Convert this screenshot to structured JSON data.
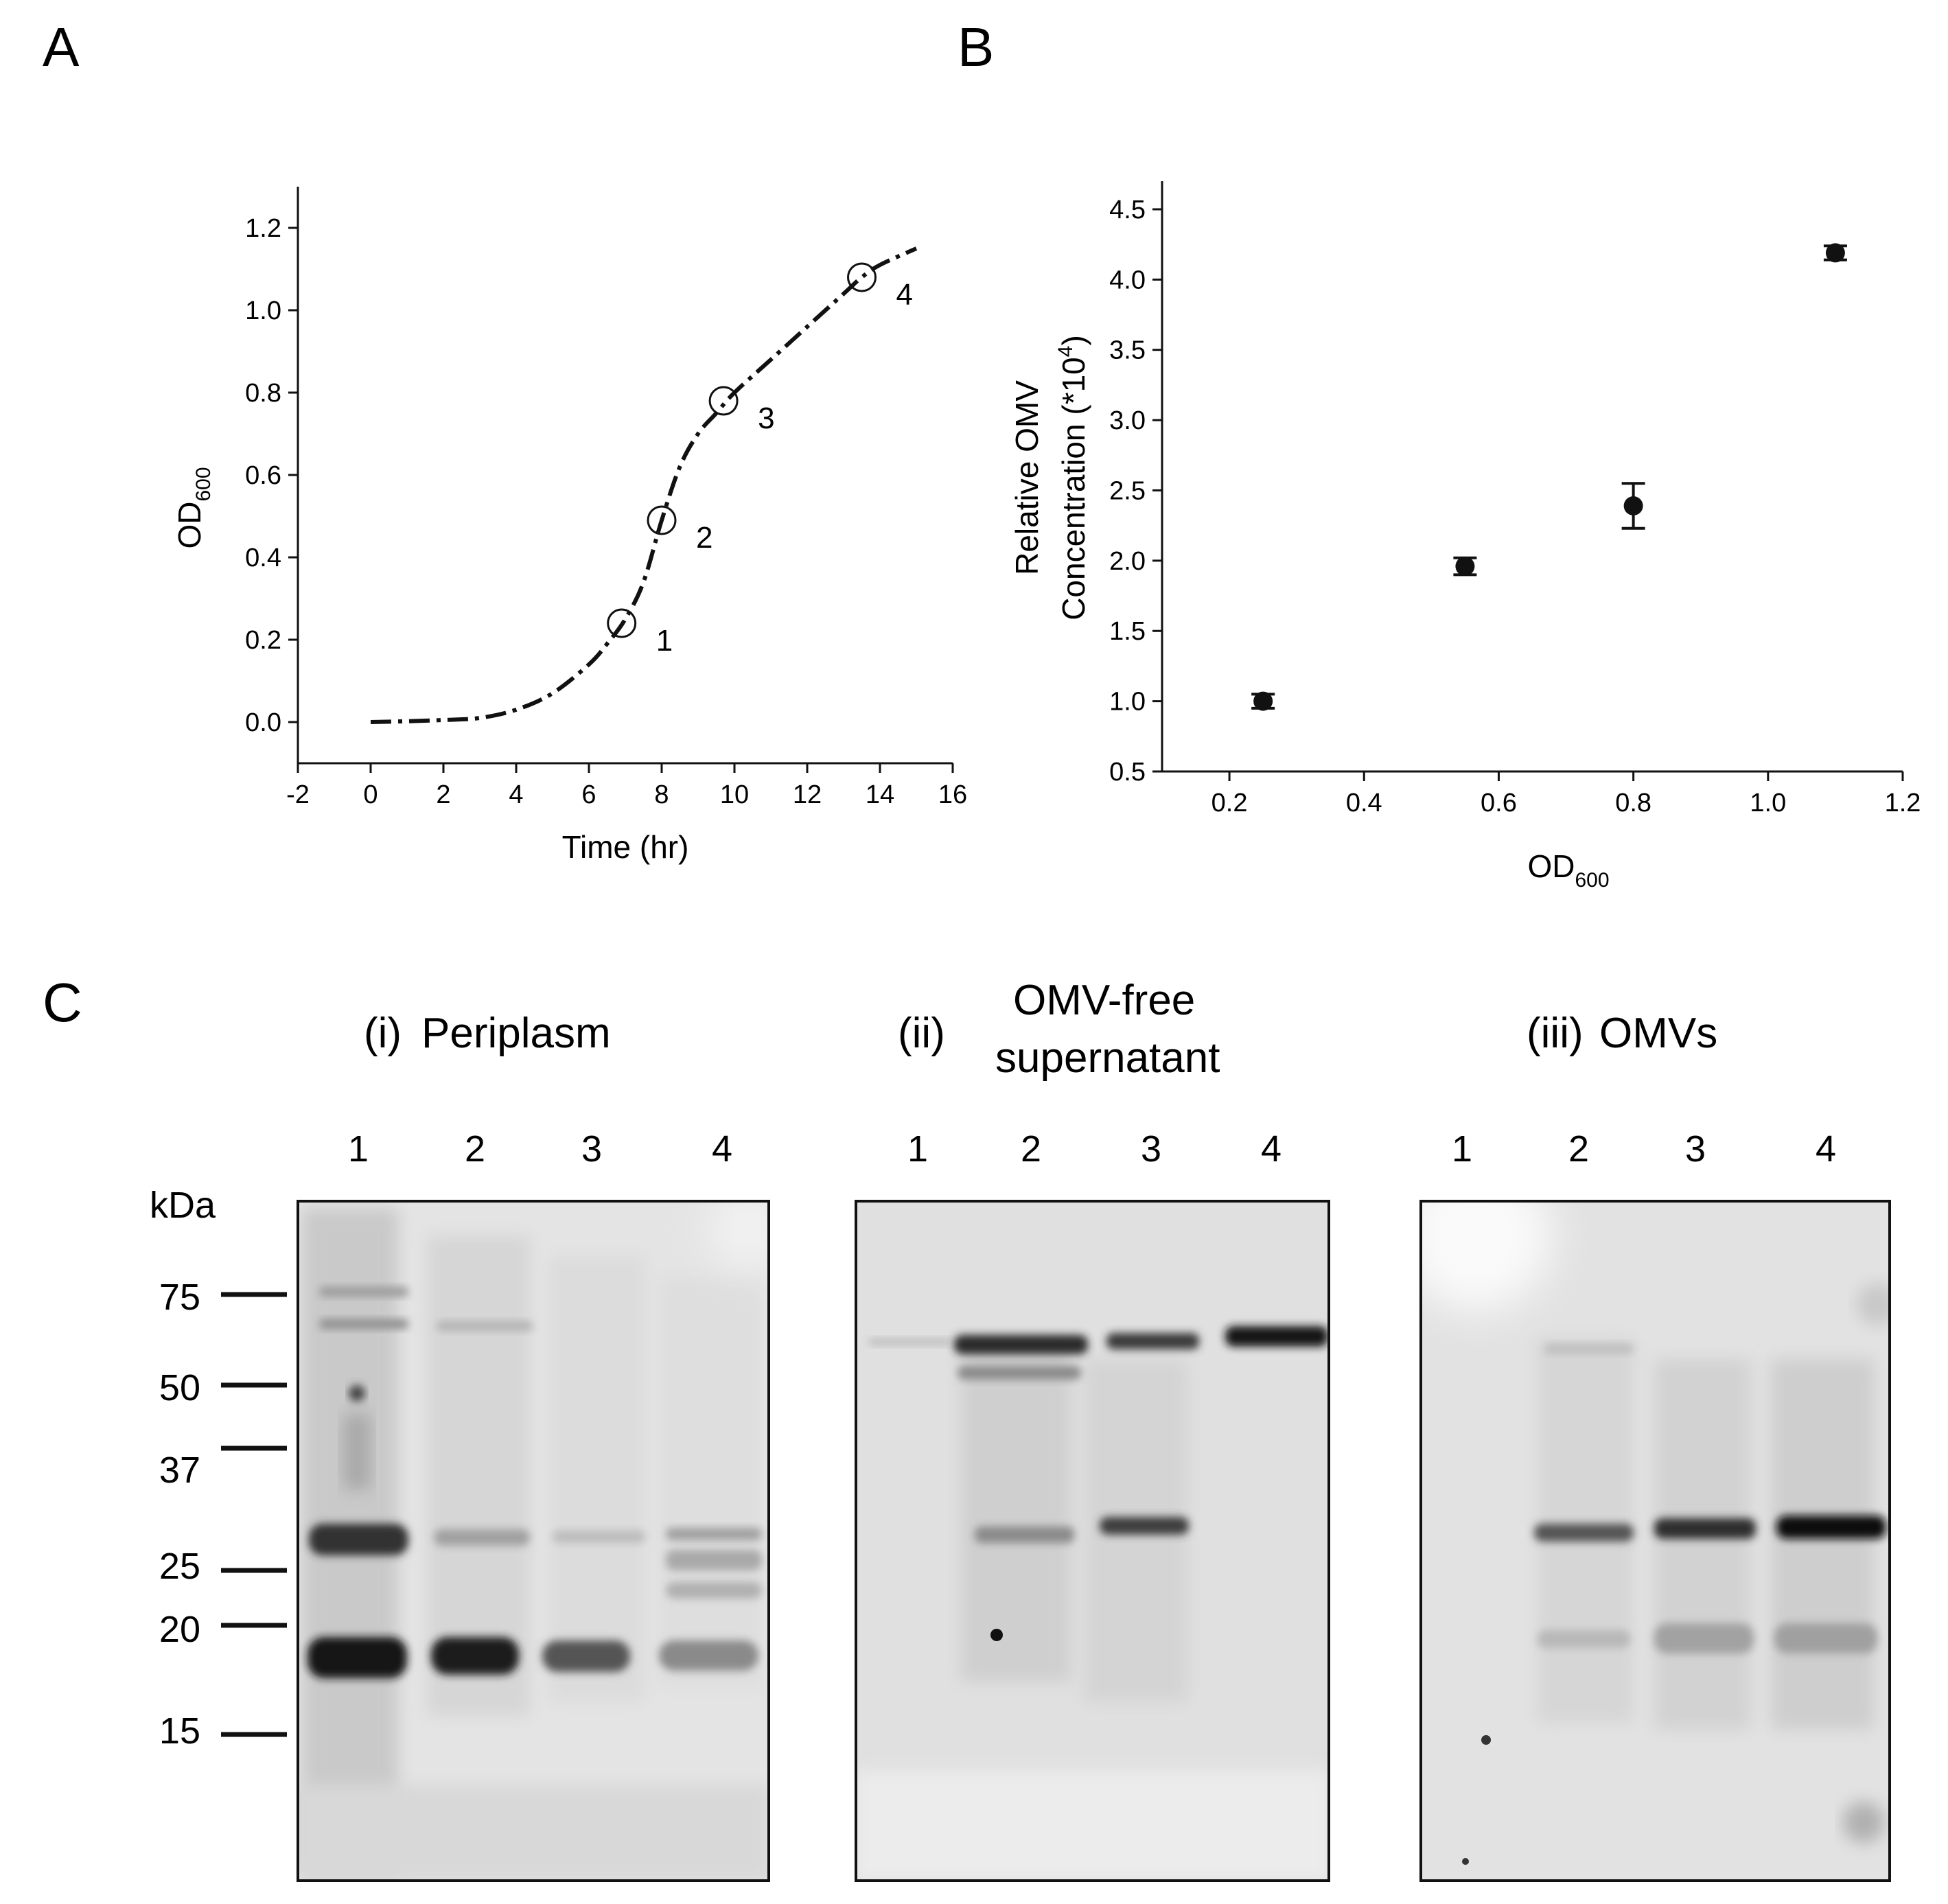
{
  "panels": {
    "A": "A",
    "B": "B",
    "C": "C"
  },
  "chart_data": [
    {
      "type": "line",
      "panel": "A",
      "xlabel": "Time (hr)",
      "ylabel_main": "OD",
      "ylabel_sub": "600",
      "xlim": [
        -2,
        16
      ],
      "ylim": [
        -0.1,
        1.3
      ],
      "xticks": [
        -2,
        0,
        2,
        4,
        6,
        8,
        10,
        12,
        14,
        16
      ],
      "yticks": [
        0.0,
        0.2,
        0.4,
        0.6,
        0.8,
        1.0,
        1.2
      ],
      "xtick_labels": [
        "-2",
        "0",
        "2",
        "4",
        "6",
        "8",
        "10",
        "12",
        "14",
        "16"
      ],
      "ytick_labels": [
        "0.0",
        "0.2",
        "0.4",
        "0.6",
        "0.8",
        "1.0",
        "1.2"
      ],
      "line_style": "dash-dot",
      "curve": {
        "x": [
          0,
          1,
          2,
          3,
          4,
          5,
          6,
          6.5,
          7,
          7.5,
          8,
          8.5,
          9,
          9.5,
          10,
          11,
          12,
          13,
          13.5,
          14,
          15
        ],
        "y": [
          0.0,
          0.002,
          0.005,
          0.01,
          0.03,
          0.07,
          0.14,
          0.19,
          0.25,
          0.34,
          0.49,
          0.62,
          0.7,
          0.75,
          0.8,
          0.88,
          0.96,
          1.04,
          1.08,
          1.11,
          1.15
        ]
      },
      "marked_points": [
        {
          "label": "1",
          "x": 6.9,
          "y": 0.24
        },
        {
          "label": "2",
          "x": 8.0,
          "y": 0.49
        },
        {
          "label": "3",
          "x": 9.7,
          "y": 0.78
        },
        {
          "label": "4",
          "x": 13.5,
          "y": 1.08
        }
      ]
    },
    {
      "type": "scatter",
      "panel": "B",
      "xlabel_main": "OD",
      "xlabel_sub": "600",
      "ylabel_line1": "Relative OMV",
      "ylabel_line2_main": "Concentration (*10",
      "ylabel_line2_sup": "4",
      "ylabel_line2_end": ")",
      "xlim": [
        0.1,
        1.2
      ],
      "ylim": [
        0.5,
        4.7
      ],
      "xticks": [
        0.2,
        0.4,
        0.6,
        0.8,
        1.0,
        1.2
      ],
      "yticks": [
        0.5,
        1.0,
        1.5,
        2.0,
        2.5,
        3.0,
        3.5,
        4.0,
        4.5
      ],
      "xtick_labels": [
        "0.2",
        "0.4",
        "0.6",
        "0.8",
        "1.0",
        "1.2"
      ],
      "ytick_labels": [
        "0.5",
        "1.0",
        "1.5",
        "2.0",
        "2.5",
        "3.0",
        "3.5",
        "4.0",
        "4.5"
      ],
      "points": [
        {
          "x": 0.25,
          "y": 1.0,
          "err": 0.05
        },
        {
          "x": 0.55,
          "y": 1.96,
          "err": 0.06
        },
        {
          "x": 0.8,
          "y": 2.39,
          "err": 0.16
        },
        {
          "x": 1.1,
          "y": 4.19,
          "err": 0.05
        }
      ]
    }
  ],
  "gels": {
    "kda_label": "kDa",
    "markers": [
      "75",
      "50",
      "37",
      "25",
      "20",
      "15"
    ],
    "blots": [
      {
        "prefix": "(i)",
        "title_line1": "Periplasm",
        "title_line2": "",
        "lanes": [
          "1",
          "2",
          "3",
          "4"
        ]
      },
      {
        "prefix": "(ii)",
        "title_line1": "OMV-free",
        "title_line2": "supernatant",
        "lanes": [
          "1",
          "2",
          "3",
          "4"
        ]
      },
      {
        "prefix": "(iii)",
        "title_line1": "OMVs",
        "title_line2": "",
        "lanes": [
          "1",
          "2",
          "3",
          "4"
        ]
      }
    ]
  }
}
